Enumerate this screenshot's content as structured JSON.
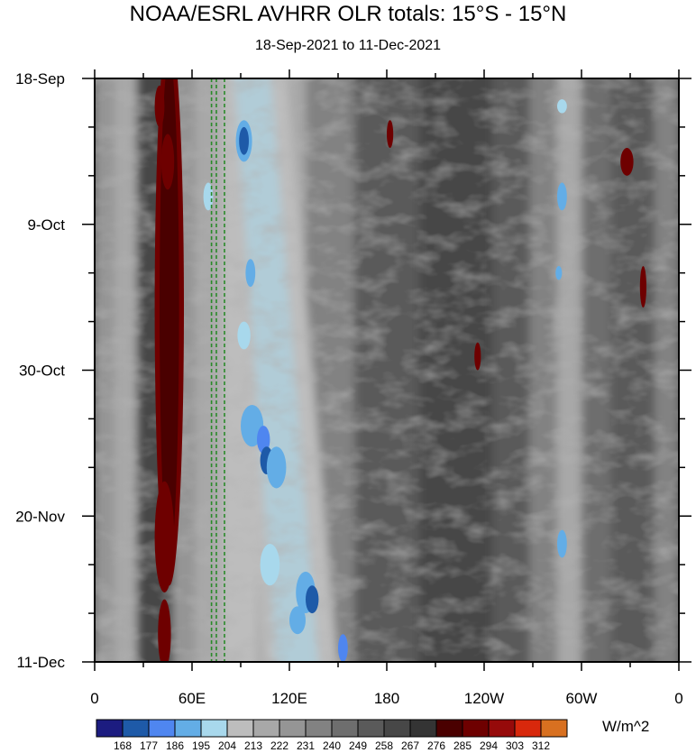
{
  "chart_data": {
    "type": "heatmap",
    "title": "NOAA/ESRL AVHRR OLR totals: 15°S - 15°N",
    "subtitle": "18-Sep-2021 to 11-Dec-2021",
    "units": "W/m^2",
    "x_ticks": [
      {
        "lon": 0,
        "label": "0"
      },
      {
        "lon": 60,
        "label": "60E"
      },
      {
        "lon": 120,
        "label": "120E"
      },
      {
        "lon": 180,
        "label": "180"
      },
      {
        "lon": 240,
        "label": "120W"
      },
      {
        "lon": 300,
        "label": "60W"
      },
      {
        "lon": 360,
        "label": "0"
      }
    ],
    "xlim": [
      0,
      360
    ],
    "y_ticks": [
      {
        "day": 0,
        "label": "18-Sep"
      },
      {
        "day": 21,
        "label": "9-Oct"
      },
      {
        "day": 42,
        "label": "30-Oct"
      },
      {
        "day": 63,
        "label": "20-Nov"
      },
      {
        "day": 84,
        "label": "11-Dec"
      }
    ],
    "ylim_days": [
      0,
      84
    ],
    "reference_lines_lon": [
      72,
      75,
      80
    ],
    "reference_line_color": "#2a8a2a",
    "colorbar": {
      "levels": [
        "168",
        "177",
        "186",
        "195",
        "204",
        "213",
        "222",
        "231",
        "240",
        "249",
        "258",
        "267",
        "276",
        "285",
        "294",
        "303",
        "312"
      ],
      "colors": [
        "#1c1c80",
        "#1e5aa8",
        "#4f86f0",
        "#63ade6",
        "#a8d8ec",
        "#bdbdbd",
        "#a8a8a8",
        "#959595",
        "#828282",
        "#6e6e6e",
        "#5a5a5a",
        "#474747",
        "#343434",
        "#4a0000",
        "#6e0000",
        "#960a0a",
        "#d8280c",
        "#d87020"
      ]
    }
  }
}
